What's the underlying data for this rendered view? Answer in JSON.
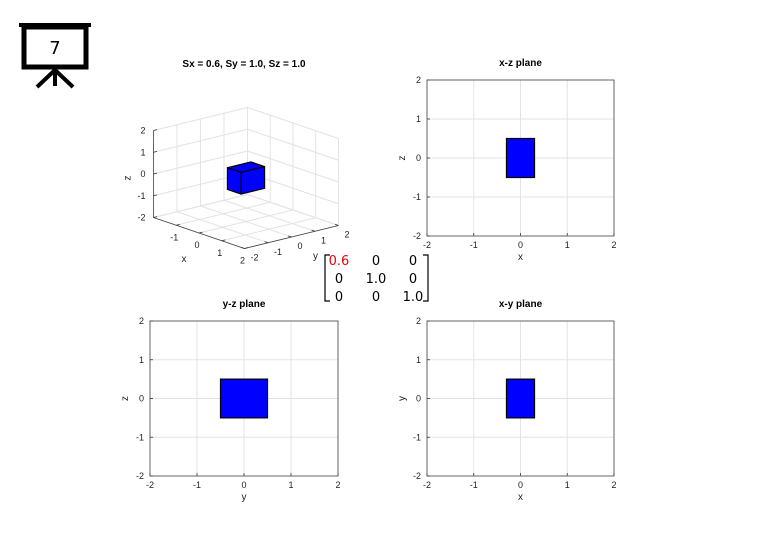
{
  "slide_number": "7",
  "matrix": {
    "rows": [
      [
        "0.6",
        "0",
        "0"
      ],
      [
        "0",
        "1.0",
        "0"
      ],
      [
        "0",
        "0",
        "1.0"
      ]
    ],
    "highlight_color": "#e8000b",
    "text_color": "#000000"
  },
  "chart_data": [
    {
      "type": "surface3d",
      "title": "Sx = 0.6, Sy = 1.0, Sz = 1.0",
      "xlabel": "x",
      "ylabel": "y",
      "zlabel": "z",
      "xlim": [
        -2,
        2
      ],
      "ylim": [
        -2,
        2
      ],
      "zlim": [
        -2,
        2
      ],
      "xticks": [
        "-1",
        "0",
        "1",
        "2"
      ],
      "yticks": [
        "-2",
        "-1",
        "0",
        "1",
        "2"
      ],
      "zticks": [
        "-2",
        "-1",
        "0",
        "1",
        "2"
      ],
      "grid": true,
      "box": {
        "x": [
          -0.3,
          0.3
        ],
        "y": [
          -0.5,
          0.5
        ],
        "z": [
          -0.5,
          0.5
        ]
      },
      "face_color": "#0000ff",
      "edge_color": "#000000"
    },
    {
      "type": "projection",
      "title": "x-z plane",
      "xlabel": "x",
      "ylabel": "z",
      "xlim": [
        -2,
        2
      ],
      "ylim": [
        -2,
        2
      ],
      "xticks": [
        "-2",
        "-1",
        "0",
        "1",
        "2"
      ],
      "yticks": [
        "-2",
        "-1",
        "0",
        "1",
        "2"
      ],
      "grid": true,
      "rect": {
        "x": [
          -0.3,
          0.3
        ],
        "y": [
          -0.5,
          0.5
        ]
      },
      "face_color": "#0000ff",
      "edge_color": "#000000"
    },
    {
      "type": "projection",
      "title": "y-z plane",
      "xlabel": "y",
      "ylabel": "z",
      "xlim": [
        -2,
        2
      ],
      "ylim": [
        -2,
        2
      ],
      "xticks": [
        "-2",
        "-1",
        "0",
        "1",
        "2"
      ],
      "yticks": [
        "-2",
        "-1",
        "0",
        "1",
        "2"
      ],
      "grid": true,
      "rect": {
        "x": [
          -0.5,
          0.5
        ],
        "y": [
          -0.5,
          0.5
        ]
      },
      "face_color": "#0000ff",
      "edge_color": "#000000"
    },
    {
      "type": "projection",
      "title": "x-y plane",
      "xlabel": "x",
      "ylabel": "y",
      "xlim": [
        -2,
        2
      ],
      "ylim": [
        -2,
        2
      ],
      "xticks": [
        "-2",
        "-1",
        "0",
        "1",
        "2"
      ],
      "yticks": [
        "-2",
        "-1",
        "0",
        "1",
        "2"
      ],
      "grid": true,
      "rect": {
        "x": [
          -0.3,
          0.3
        ],
        "y": [
          -0.5,
          0.5
        ]
      },
      "face_color": "#0000ff",
      "edge_color": "#000000"
    }
  ]
}
